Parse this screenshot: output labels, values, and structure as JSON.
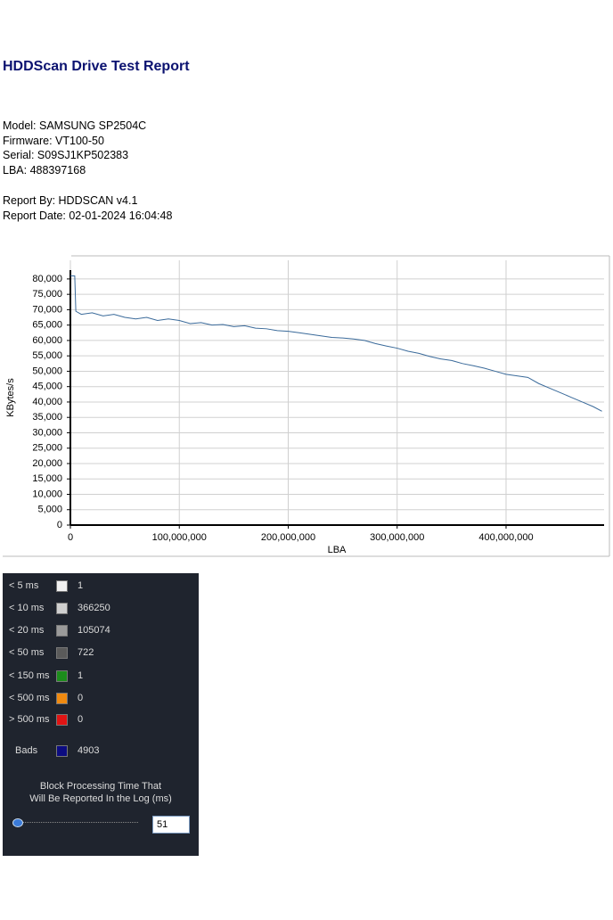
{
  "header": {
    "title": "HDDScan Drive Test Report"
  },
  "info": [
    "Model: SAMSUNG SP2504C",
    "Firmware: VT100-50",
    "Serial: S09SJ1KP502383",
    "LBA: 488397168"
  ],
  "report": [
    "Report By: HDDSCAN v4.1",
    "Report Date: 02-01-2024 16:04:48"
  ],
  "chart_data": {
    "type": "line",
    "x_label": "LBA",
    "y_label": "KBytes/s",
    "color": "#3a6a9a",
    "grid": true,
    "x": [
      0,
      4000000,
      5000000,
      10000000,
      20000000,
      30000000,
      40000000,
      50000000,
      60000000,
      70000000,
      80000000,
      90000000,
      100000000,
      110000000,
      120000000,
      130000000,
      140000000,
      150000000,
      160000000,
      170000000,
      180000000,
      190000000,
      200000000,
      210000000,
      220000000,
      230000000,
      240000000,
      250000000,
      260000000,
      270000000,
      280000000,
      290000000,
      300000000,
      310000000,
      320000000,
      330000000,
      340000000,
      350000000,
      360000000,
      370000000,
      380000000,
      390000000,
      400000000,
      410000000,
      420000000,
      430000000,
      440000000,
      450000000,
      460000000,
      470000000,
      480000000,
      488000000
    ],
    "values": [
      81000,
      81000,
      69500,
      68500,
      69000,
      68000,
      68500,
      67500,
      67000,
      67500,
      66500,
      67000,
      66500,
      65500,
      65800,
      65000,
      65200,
      64500,
      64800,
      64000,
      63800,
      63200,
      63000,
      62500,
      62000,
      61500,
      61000,
      60800,
      60500,
      60000,
      59000,
      58200,
      57500,
      56500,
      55800,
      54800,
      54000,
      53500,
      52500,
      51800,
      51000,
      50000,
      49000,
      48500,
      48000,
      46000,
      44500,
      43000,
      41500,
      40000,
      38500,
      37000
    ],
    "xlim": [
      0,
      490000000
    ],
    "xticks": [
      0,
      {
        "value": 100000000,
        "label": "100,000,000"
      },
      {
        "value": 200000000,
        "label": "200,000,000"
      },
      {
        "value": 300000000,
        "label": "300,000,000"
      },
      {
        "value": 400000000,
        "label": "400,000,000"
      }
    ],
    "ylim": [
      0,
      82000
    ],
    "yticks": [
      0,
      {
        "value": 5000,
        "label": "5,000"
      },
      {
        "value": 10000,
        "label": "10,000"
      },
      {
        "value": 15000,
        "label": "15,000"
      },
      {
        "value": 20000,
        "label": "20,000"
      },
      {
        "value": 25000,
        "label": "25,000"
      },
      {
        "value": 30000,
        "label": "30,000"
      },
      {
        "value": 35000,
        "label": "35,000"
      },
      {
        "value": 40000,
        "label": "40,000"
      },
      {
        "value": 45000,
        "label": "45,000"
      },
      {
        "value": 50000,
        "label": "50,000"
      },
      {
        "value": 55000,
        "label": "55,000"
      },
      {
        "value": 60000,
        "label": "60,000"
      },
      {
        "value": 65000,
        "label": "65,000"
      },
      {
        "value": 70000,
        "label": "70,000"
      },
      {
        "value": 75000,
        "label": "75,000"
      },
      {
        "value": 80000,
        "label": "80,000"
      }
    ]
  },
  "legend": {
    "rows": [
      {
        "label": "< 5 ms",
        "color": "#f2f2f2",
        "count": 1
      },
      {
        "label": "< 10 ms",
        "color": "#cfcfcf",
        "count": 366250
      },
      {
        "label": "< 20 ms",
        "color": "#9a9a9a",
        "count": 105074
      },
      {
        "label": "< 50 ms",
        "color": "#5a5a5a",
        "count": 722
      },
      {
        "label": "< 150 ms",
        "color": "#1c8c1c",
        "count": 1
      },
      {
        "label": "< 500 ms",
        "color": "#f08a10",
        "count": 0
      },
      {
        "label": "> 500 ms",
        "color": "#e01414",
        "count": 0
      }
    ],
    "bads": {
      "label": "Bads",
      "color": "#0c0c80",
      "count": 4903
    },
    "description": [
      "Block Processing Time That",
      "Will Be Reported In the Log (ms)"
    ],
    "threshold": 51
  }
}
